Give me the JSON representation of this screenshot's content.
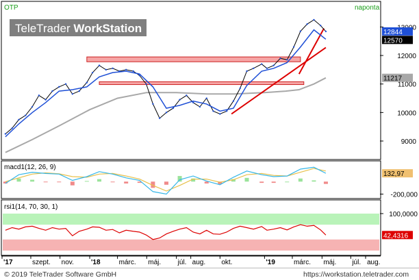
{
  "colors": {
    "price_line": "#000000",
    "ma_short": "#1e4fd6",
    "trend_line": "#dd0000",
    "ma_long": "#a8a8a8",
    "zone_fill": "#f6a5a5",
    "zone_stroke": "#cc2222",
    "macd_line": "#35b6e8",
    "signal_line": "#e8c04a",
    "hist_pos": "#9be39b",
    "hist_neg": "#f08a8a",
    "rsi_line": "#dd0000",
    "rsi_upper_band": "#b9f3b9",
    "rsi_lower_band": "#f6b3b3",
    "label_blue": "#1e4fd6",
    "label_gray": "#a8a8a8",
    "label_tan": "#f0c070"
  },
  "chart_data": [
    {
      "type": "line",
      "name": "price-panel",
      "symbol": "OTP",
      "interval": "naponta",
      "watermark": "TeleTrader WorkStation",
      "watermark_part1": "TeleTrader ",
      "watermark_part2": "WorkStation",
      "ylim": [
        8400,
        13850
      ],
      "yticks": [
        9000,
        10000,
        11000,
        12000,
        13000
      ],
      "ytick_labels": [
        "9000",
        "10000",
        "11000",
        "12000",
        "13000"
      ],
      "last_price_labels": {
        "close": "12844",
        "short_ma": "12570",
        "long_ma": "11217"
      },
      "series": [
        {
          "name": "OTP",
          "x": [
            "2017-07-10",
            "2017-07-24",
            "2017-08-07",
            "2017-08-21",
            "2017-09-04",
            "2017-09-18",
            "2017-10-02",
            "2017-10-16",
            "2017-10-30",
            "2017-11-13",
            "2017-11-27",
            "2017-12-11",
            "2017-12-27",
            "2018-01-08",
            "2018-01-22",
            "2018-02-05",
            "2018-02-19",
            "2018-03-05",
            "2018-03-19",
            "2018-04-03",
            "2018-04-16",
            "2018-04-30",
            "2018-05-14",
            "2018-05-28",
            "2018-06-11",
            "2018-06-25",
            "2018-07-09",
            "2018-07-23",
            "2018-08-06",
            "2018-08-20",
            "2018-09-03",
            "2018-09-17",
            "2018-10-01",
            "2018-10-15",
            "2018-10-29",
            "2018-11-12",
            "2018-11-26",
            "2018-12-10",
            "2018-12-27",
            "2019-01-07",
            "2019-01-21",
            "2019-02-04",
            "2019-02-18",
            "2019-03-04",
            "2019-03-18",
            "2019-04-01",
            "2019-04-15",
            "2019-04-29",
            "2019-05-10"
          ],
          "values": [
            9250,
            9450,
            9750,
            9900,
            10200,
            10600,
            10450,
            10750,
            10900,
            11000,
            10650,
            10750,
            11050,
            11400,
            11650,
            11500,
            11550,
            11450,
            11500,
            11450,
            11300,
            11000,
            10300,
            9800,
            10000,
            10150,
            10450,
            10600,
            10350,
            10200,
            10500,
            10050,
            9950,
            10050,
            10400,
            10850,
            11450,
            11550,
            11700,
            11550,
            11650,
            11900,
            11850,
            12300,
            12850,
            13100,
            13250,
            13050,
            12844
          ]
        },
        {
          "name": "short-ma",
          "x": [
            "2017-07-10",
            "2017-08-07",
            "2017-09-04",
            "2017-10-02",
            "2017-10-30",
            "2017-11-27",
            "2017-12-27",
            "2018-01-22",
            "2018-02-19",
            "2018-03-19",
            "2018-04-16",
            "2018-05-14",
            "2018-06-11",
            "2018-07-09",
            "2018-08-06",
            "2018-09-03",
            "2018-10-01",
            "2018-10-29",
            "2018-11-26",
            "2018-12-27",
            "2019-01-21",
            "2019-02-18",
            "2019-03-18",
            "2019-04-15",
            "2019-05-10"
          ],
          "values": [
            9150,
            9600,
            10000,
            10350,
            10750,
            10800,
            10900,
            11250,
            11400,
            11450,
            11350,
            10900,
            10150,
            10250,
            10400,
            10300,
            10050,
            10150,
            10950,
            11450,
            11550,
            11750,
            12300,
            12900,
            12570
          ]
        },
        {
          "name": "long-ma",
          "x": [
            "2017-07-10",
            "2017-09-04",
            "2017-11-01",
            "2018-01-02",
            "2018-03-01",
            "2018-05-01",
            "2018-07-02",
            "2018-09-03",
            "2018-11-01",
            "2019-01-02",
            "2019-02-15",
            "2019-03-15",
            "2019-04-15",
            "2019-05-10"
          ],
          "values": [
            8600,
            9050,
            9550,
            10100,
            10500,
            10700,
            10700,
            10650,
            10650,
            10700,
            10750,
            10800,
            11000,
            11217
          ]
        }
      ],
      "trendlines": [
        {
          "x": [
            "2018-10-25",
            "2019-05-10"
          ],
          "y": [
            9950,
            12280
          ]
        },
        {
          "x": [
            "2019-03-15",
            "2019-05-06"
          ],
          "y": [
            11350,
            12950
          ]
        }
      ],
      "resistance_zones": [
        {
          "x": [
            "2017-12-27",
            "2019-03-18"
          ],
          "y": [
            11780,
            11950
          ]
        },
        {
          "x": [
            "2018-01-22",
            "2019-03-25"
          ],
          "y": [
            10980,
            11080
          ]
        }
      ]
    },
    {
      "type": "line",
      "name": "macd-panel",
      "title": "macd1(12, 26, 9)",
      "ylim": [
        -260,
        310
      ],
      "yticks": [
        -200
      ],
      "ytick_labels": [
        "-200,000"
      ],
      "last_value_label": "132,97",
      "x": [
        "2017-07-10",
        "2017-08-07",
        "2017-09-04",
        "2017-10-02",
        "2017-10-30",
        "2017-11-27",
        "2017-12-27",
        "2018-01-22",
        "2018-02-19",
        "2018-03-19",
        "2018-04-16",
        "2018-05-14",
        "2018-06-11",
        "2018-07-09",
        "2018-08-06",
        "2018-09-03",
        "2018-10-01",
        "2018-10-29",
        "2018-11-26",
        "2018-12-27",
        "2019-01-21",
        "2019-02-18",
        "2019-03-18",
        "2019-04-15",
        "2019-05-10"
      ],
      "series": [
        {
          "name": "macd",
          "values": [
            -30,
            110,
            150,
            130,
            120,
            20,
            80,
            160,
            120,
            60,
            20,
            -160,
            -200,
            30,
            90,
            10,
            -50,
            70,
            170,
            110,
            80,
            90,
            200,
            230,
            133
          ]
        },
        {
          "name": "signal",
          "values": [
            0,
            60,
            120,
            140,
            125,
            80,
            70,
            120,
            130,
            90,
            40,
            -60,
            -150,
            -60,
            40,
            40,
            -10,
            30,
            110,
            130,
            100,
            90,
            150,
            210,
            170
          ]
        }
      ]
    },
    {
      "type": "line",
      "name": "rsi-panel",
      "title": "rsi1(14, 70, 30, 1)",
      "ylim": [
        0,
        100
      ],
      "upper_band": 70,
      "lower_band": 30,
      "ytick_labels": [
        "100,0000"
      ],
      "last_value_label": "42,4316",
      "x": [
        "2017-07-10",
        "2017-07-24",
        "2017-08-07",
        "2017-08-21",
        "2017-09-04",
        "2017-09-18",
        "2017-10-02",
        "2017-10-16",
        "2017-10-30",
        "2017-11-13",
        "2017-11-27",
        "2017-12-11",
        "2017-12-27",
        "2018-01-08",
        "2018-01-22",
        "2018-02-05",
        "2018-02-19",
        "2018-03-05",
        "2018-03-19",
        "2018-04-03",
        "2018-04-16",
        "2018-04-30",
        "2018-05-14",
        "2018-05-28",
        "2018-06-11",
        "2018-06-25",
        "2018-07-09",
        "2018-07-23",
        "2018-08-06",
        "2018-08-20",
        "2018-09-03",
        "2018-09-17",
        "2018-10-01",
        "2018-10-15",
        "2018-10-29",
        "2018-11-12",
        "2018-11-26",
        "2018-12-10",
        "2018-12-27",
        "2019-01-07",
        "2019-01-21",
        "2019-02-04",
        "2019-02-18",
        "2019-03-04",
        "2019-03-18",
        "2019-04-01",
        "2019-04-15",
        "2019-04-29",
        "2019-05-10"
      ],
      "values": [
        55,
        62,
        58,
        64,
        66,
        60,
        55,
        62,
        58,
        60,
        40,
        52,
        58,
        64,
        63,
        55,
        57,
        48,
        55,
        52,
        50,
        42,
        30,
        34,
        45,
        52,
        58,
        62,
        50,
        45,
        55,
        45,
        44,
        50,
        60,
        66,
        62,
        58,
        65,
        55,
        58,
        62,
        56,
        64,
        70,
        66,
        68,
        56,
        42
      ]
    }
  ],
  "x_axis": {
    "labels": [
      {
        "text": "'17",
        "date": "2017-07-03",
        "bold": true
      },
      {
        "text": "szept.",
        "date": "2017-09-01",
        "bold": false
      },
      {
        "text": "nov.",
        "date": "2017-11-01",
        "bold": false
      },
      {
        "text": "'18",
        "date": "2018-01-02",
        "bold": true
      },
      {
        "text": "márc.",
        "date": "2018-03-01",
        "bold": false
      },
      {
        "text": "máj.",
        "date": "2018-05-01",
        "bold": false
      },
      {
        "text": "júl.",
        "date": "2018-07-02",
        "bold": false
      },
      {
        "text": "aug.",
        "date": "2018-08-01",
        "bold": false
      },
      {
        "text": "okt.",
        "date": "2018-10-01",
        "bold": false
      },
      {
        "text": "'19",
        "date": "2019-01-02",
        "bold": true
      },
      {
        "text": "márc.",
        "date": "2019-03-01",
        "bold": false
      },
      {
        "text": "máj.",
        "date": "2019-05-02",
        "bold": false
      },
      {
        "text": "júl.",
        "date": "2019-07-01",
        "bold": false
      },
      {
        "text": "aug.",
        "date": "2019-08-01",
        "bold": false
      }
    ]
  },
  "footer": {
    "copyright": "© 2019 TeleTrader Software GmbH",
    "url": "https://workstation.teletrader.com"
  }
}
